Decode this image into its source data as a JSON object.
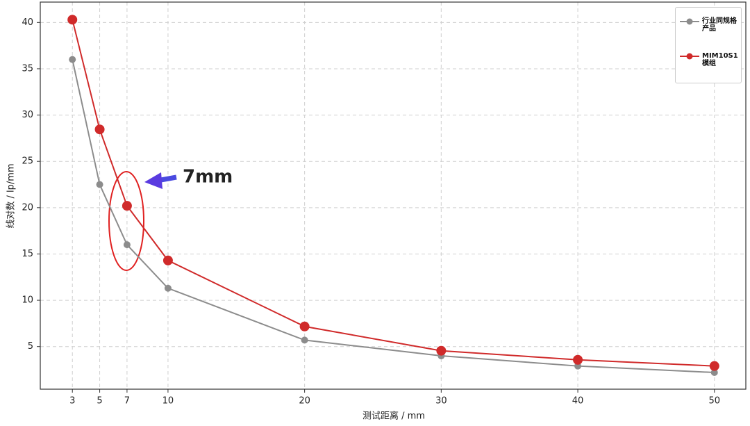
{
  "chart_data": {
    "type": "line",
    "x": [
      3,
      5,
      7,
      10,
      20,
      30,
      40,
      50
    ],
    "series": [
      {
        "name": "行业同规格产品",
        "color": "#8c8c8c",
        "values": [
          36.0,
          22.5,
          16.0,
          11.3,
          5.7,
          4.0,
          2.9,
          2.2
        ]
      },
      {
        "name": "MIM10S1模组",
        "color": "#d02a2a",
        "values": [
          40.3,
          28.45,
          20.2,
          14.3,
          7.17,
          4.55,
          3.57,
          2.9
        ]
      }
    ],
    "xlabel": "测试距离 / mm",
    "ylabel": "线对数 / lp/mm",
    "xlim": [
      0.65,
      52.3
    ],
    "ylim": [
      0.4,
      42.2
    ],
    "xticks": [
      3,
      5,
      7,
      10,
      20,
      30,
      40,
      50
    ],
    "yticks": [
      5,
      10,
      15,
      20,
      25,
      30,
      35,
      40
    ],
    "grid": true,
    "legend": "upper right",
    "annotation": "7mm"
  }
}
